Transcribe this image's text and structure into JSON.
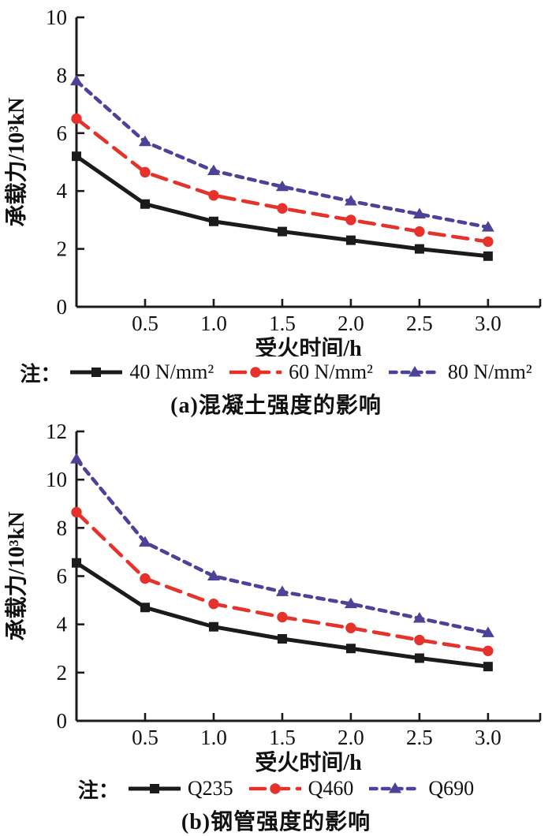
{
  "colors": {
    "black": "#1b1b1b",
    "red": "#e5322b",
    "blue": "#4c4399",
    "axis": "#1b1b1b"
  },
  "chart_data": [
    {
      "type": "line",
      "caption": "(a)混凝土强度的影响",
      "note_label": "注：",
      "xlabel": "受火时间/h",
      "ylabel": "承载力/10³kN",
      "xlim": [
        0,
        3.38
      ],
      "ylim": [
        0,
        10
      ],
      "ytick_step": 2,
      "yticks": [
        0,
        2,
        4,
        6,
        8,
        10
      ],
      "xticks": [
        0.5,
        1.0,
        1.5,
        2.0,
        2.5,
        3.0
      ],
      "xtick_labels": [
        "0.5",
        "1.0",
        "1.5",
        "2.0",
        "2.5",
        "3.0"
      ],
      "grid": false,
      "legend_position": "below",
      "x": [
        0,
        0.5,
        1.0,
        1.5,
        2.0,
        2.5,
        3.0
      ],
      "series": [
        {
          "name": "40 N/mm²",
          "color": "#1b1b1b",
          "line": "solid",
          "marker": "square",
          "values": [
            5.2,
            3.55,
            2.95,
            2.6,
            2.3,
            2.0,
            1.75
          ]
        },
        {
          "name": "60 N/mm²",
          "color": "#e5322b",
          "line": "long-dash",
          "marker": "circle",
          "values": [
            6.5,
            4.65,
            3.85,
            3.4,
            3.0,
            2.6,
            2.25
          ]
        },
        {
          "name": "80 N/mm²",
          "color": "#4c4399",
          "line": "short-dash",
          "marker": "triangle",
          "values": [
            7.8,
            5.7,
            4.7,
            4.15,
            3.65,
            3.2,
            2.75
          ]
        }
      ]
    },
    {
      "type": "line",
      "caption": "(b)钢管强度的影响",
      "note_label": "注：",
      "xlabel": "受火时间/h",
      "ylabel": "承载力/10³kN",
      "xlim": [
        0,
        3.38
      ],
      "ylim": [
        0,
        12
      ],
      "ytick_step": 2,
      "yticks": [
        0,
        2,
        4,
        6,
        8,
        10,
        12
      ],
      "xticks": [
        0.5,
        1.0,
        1.5,
        2.0,
        2.5,
        3.0
      ],
      "xtick_labels": [
        "0.5",
        "1.0",
        "1.5",
        "2.0",
        "2.5",
        "3.0"
      ],
      "grid": false,
      "legend_position": "below",
      "x": [
        0,
        0.5,
        1.0,
        1.5,
        2.0,
        2.5,
        3.0
      ],
      "series": [
        {
          "name": "Q235",
          "color": "#1b1b1b",
          "line": "solid",
          "marker": "square",
          "values": [
            6.55,
            4.7,
            3.9,
            3.4,
            3.0,
            2.6,
            2.25
          ]
        },
        {
          "name": "Q460",
          "color": "#e5322b",
          "line": "long-dash",
          "marker": "circle",
          "values": [
            8.65,
            5.9,
            4.85,
            4.3,
            3.85,
            3.35,
            2.9
          ]
        },
        {
          "name": "Q690",
          "color": "#4c4399",
          "line": "short-dash",
          "marker": "triangle",
          "values": [
            10.85,
            7.4,
            6.0,
            5.35,
            4.85,
            4.25,
            3.65
          ]
        }
      ]
    }
  ]
}
